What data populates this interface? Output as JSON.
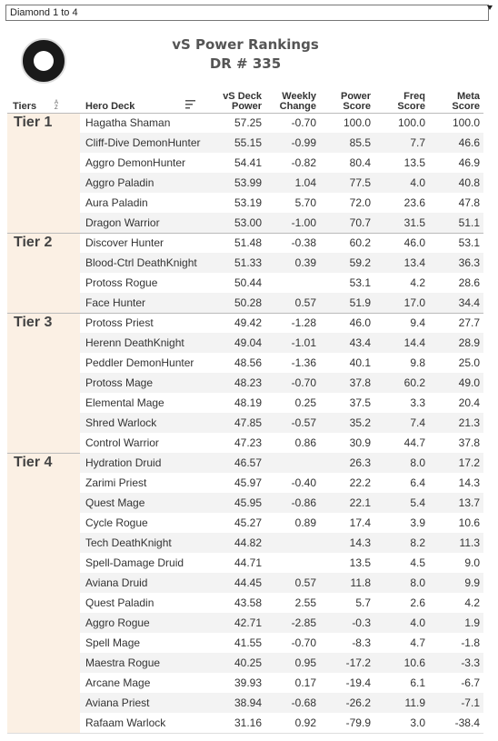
{
  "dropdown": "Diamond 1 to 4",
  "header": {
    "title": "vS Power Rankings",
    "subtitle": "DR # 335"
  },
  "columns": [
    [
      "Tiers"
    ],
    [
      "Hero Deck"
    ],
    [
      "vS Deck",
      "Power"
    ],
    [
      "Weekly",
      "Change"
    ],
    [
      "Power",
      "Score"
    ],
    [
      "Freq",
      "Score"
    ],
    [
      "Meta",
      "Score"
    ]
  ],
  "tiers": [
    {
      "label": "Tier 1",
      "rows": [
        [
          "Hagatha Shaman",
          "57.25",
          "-0.70",
          "100.0",
          "100.0",
          "100.0"
        ],
        [
          "Cliff-Dive DemonHunter",
          "55.15",
          "-0.99",
          "85.5",
          "7.7",
          "46.6"
        ],
        [
          "Aggro DemonHunter",
          "54.41",
          "-0.82",
          "80.4",
          "13.5",
          "46.9"
        ],
        [
          "Aggro Paladin",
          "53.99",
          "1.04",
          "77.5",
          "4.0",
          "40.8"
        ],
        [
          "Aura Paladin",
          "53.19",
          "5.70",
          "72.0",
          "23.6",
          "47.8"
        ],
        [
          "Dragon Warrior",
          "53.00",
          "-1.00",
          "70.7",
          "31.5",
          "51.1"
        ]
      ]
    },
    {
      "label": "Tier 2",
      "rows": [
        [
          "Discover Hunter",
          "51.48",
          "-0.38",
          "60.2",
          "46.0",
          "53.1"
        ],
        [
          "Blood-Ctrl DeathKnight",
          "51.33",
          "0.39",
          "59.2",
          "13.4",
          "36.3"
        ],
        [
          "Protoss Rogue",
          "50.44",
          null,
          "53.1",
          "4.2",
          "28.6"
        ],
        [
          "Face Hunter",
          "50.28",
          "0.57",
          "51.9",
          "17.0",
          "34.4"
        ]
      ]
    },
    {
      "label": "Tier 3",
      "rows": [
        [
          "Protoss Priest",
          "49.42",
          "-1.28",
          "46.0",
          "9.4",
          "27.7"
        ],
        [
          "Herenn DeathKnight",
          "49.04",
          "-1.01",
          "43.4",
          "14.4",
          "28.9"
        ],
        [
          "Peddler DemonHunter",
          "48.56",
          "-1.36",
          "40.1",
          "9.8",
          "25.0"
        ],
        [
          "Protoss Mage",
          "48.23",
          "-0.70",
          "37.8",
          "60.2",
          "49.0"
        ],
        [
          "Elemental Mage",
          "48.19",
          "0.25",
          "37.5",
          "3.3",
          "20.4"
        ],
        [
          "Shred Warlock",
          "47.85",
          "-0.57",
          "35.2",
          "7.4",
          "21.3"
        ],
        [
          "Control Warrior",
          "47.23",
          "0.86",
          "30.9",
          "44.7",
          "37.8"
        ]
      ]
    },
    {
      "label": "Tier 4",
      "rows": [
        [
          "Hydration Druid",
          "46.57",
          null,
          "26.3",
          "8.0",
          "17.2"
        ],
        [
          "Zarimi Priest",
          "45.97",
          "-0.40",
          "22.2",
          "6.4",
          "14.3"
        ],
        [
          "Quest Mage",
          "45.95",
          "-0.86",
          "22.1",
          "5.4",
          "13.7"
        ],
        [
          "Cycle Rogue",
          "45.27",
          "0.89",
          "17.4",
          "3.9",
          "10.6"
        ],
        [
          "Tech DeathKnight",
          "44.82",
          null,
          "14.3",
          "8.2",
          "11.3"
        ],
        [
          "Spell-Damage Druid",
          "44.71",
          null,
          "13.5",
          "4.5",
          "9.0"
        ],
        [
          "Aviana Druid",
          "44.45",
          "0.57",
          "11.8",
          "8.0",
          "9.9"
        ],
        [
          "Quest Paladin",
          "43.58",
          "2.55",
          "5.7",
          "2.6",
          "4.2"
        ],
        [
          "Aggro Rogue",
          "42.71",
          "-2.85",
          "-0.3",
          "4.0",
          "1.9"
        ],
        [
          "Spell Mage",
          "41.55",
          "-0.70",
          "-8.3",
          "4.7",
          "-1.8"
        ],
        [
          "Maestra Rogue",
          "40.25",
          "0.95",
          "-17.2",
          "10.6",
          "-3.3"
        ],
        [
          "Arcane Mage",
          "39.93",
          "0.17",
          "-19.4",
          "6.1",
          "-6.7"
        ],
        [
          "Aviana Priest",
          "38.94",
          "-0.68",
          "-26.2",
          "11.9",
          "-7.1"
        ],
        [
          "Rafaam Warlock",
          "31.16",
          "0.92",
          "-79.9",
          "3.0",
          "-38.4"
        ]
      ]
    }
  ]
}
